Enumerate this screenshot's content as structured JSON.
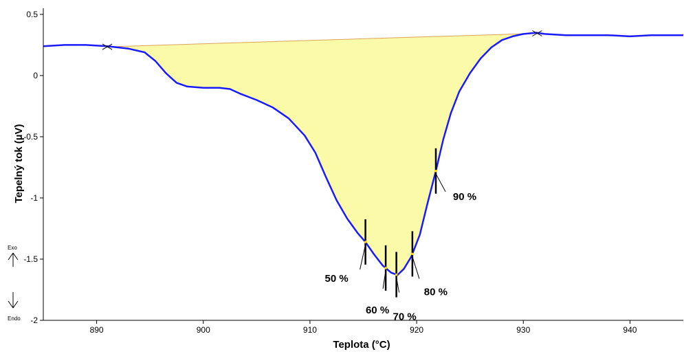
{
  "chart_data": {
    "type": "line",
    "xlabel": "Teplota (°C)",
    "ylabel": "Tepelný tok (µV)",
    "xlim": [
      885,
      945
    ],
    "ylim": [
      -2,
      0.55
    ],
    "x_ticks": [
      890,
      900,
      910,
      920,
      930,
      940
    ],
    "y_ticks": [
      0.5,
      0,
      -0.5,
      -1,
      -1.5,
      -2
    ],
    "y_tick_labels": [
      "0.5",
      "0",
      "-0.5",
      "-1",
      "-1.5",
      "-2"
    ],
    "series": [
      {
        "x": [
          885,
          887,
          889,
          891,
          893,
          894.5,
          895.5,
          896.5,
          897.5,
          898.5,
          900,
          901.5,
          902.5,
          903.5,
          905,
          906.5,
          908,
          909.5,
          910.5,
          911.5,
          912.5,
          913.5,
          914.5,
          915.2,
          916,
          916.8,
          917.6,
          918.2,
          918.8,
          919.5,
          920.3,
          921,
          921.8,
          922.5,
          923.2,
          924,
          925,
          926,
          927,
          928,
          929,
          930,
          931.2,
          932,
          934,
          936,
          938,
          940,
          942,
          945
        ],
        "y": [
          0.24,
          0.25,
          0.25,
          0.24,
          0.22,
          0.19,
          0.12,
          0.02,
          -0.06,
          -0.09,
          -0.1,
          -0.1,
          -0.11,
          -0.15,
          -0.2,
          -0.26,
          -0.35,
          -0.49,
          -0.63,
          -0.83,
          -1.02,
          -1.17,
          -1.29,
          -1.36,
          -1.46,
          -1.55,
          -1.61,
          -1.63,
          -1.58,
          -1.48,
          -1.3,
          -1.05,
          -0.78,
          -0.52,
          -0.31,
          -0.13,
          0.02,
          0.14,
          0.23,
          0.29,
          0.32,
          0.34,
          0.35,
          0.34,
          0.33,
          0.33,
          0.33,
          0.32,
          0.33,
          0.33
        ]
      }
    ],
    "baseline": {
      "x1": 891,
      "y1": 0.235,
      "x2": 931.3,
      "y2": 0.345
    },
    "markers": [
      {
        "label": "50 %",
        "x": 915.2
      },
      {
        "label": "60 %",
        "x": 917.1
      },
      {
        "label": "70 %",
        "x": 918.1
      },
      {
        "label": "80 %",
        "x": 919.6
      },
      {
        "label": "90 %",
        "x": 921.8
      }
    ],
    "side_labels": {
      "top": "Exo",
      "bottom": "Endo"
    },
    "colors": {
      "line": "#1a1aff",
      "fill": "#fafaa8",
      "baseline": "#d9a45a",
      "marker": "#000000",
      "highlight": "#ffd700"
    }
  }
}
